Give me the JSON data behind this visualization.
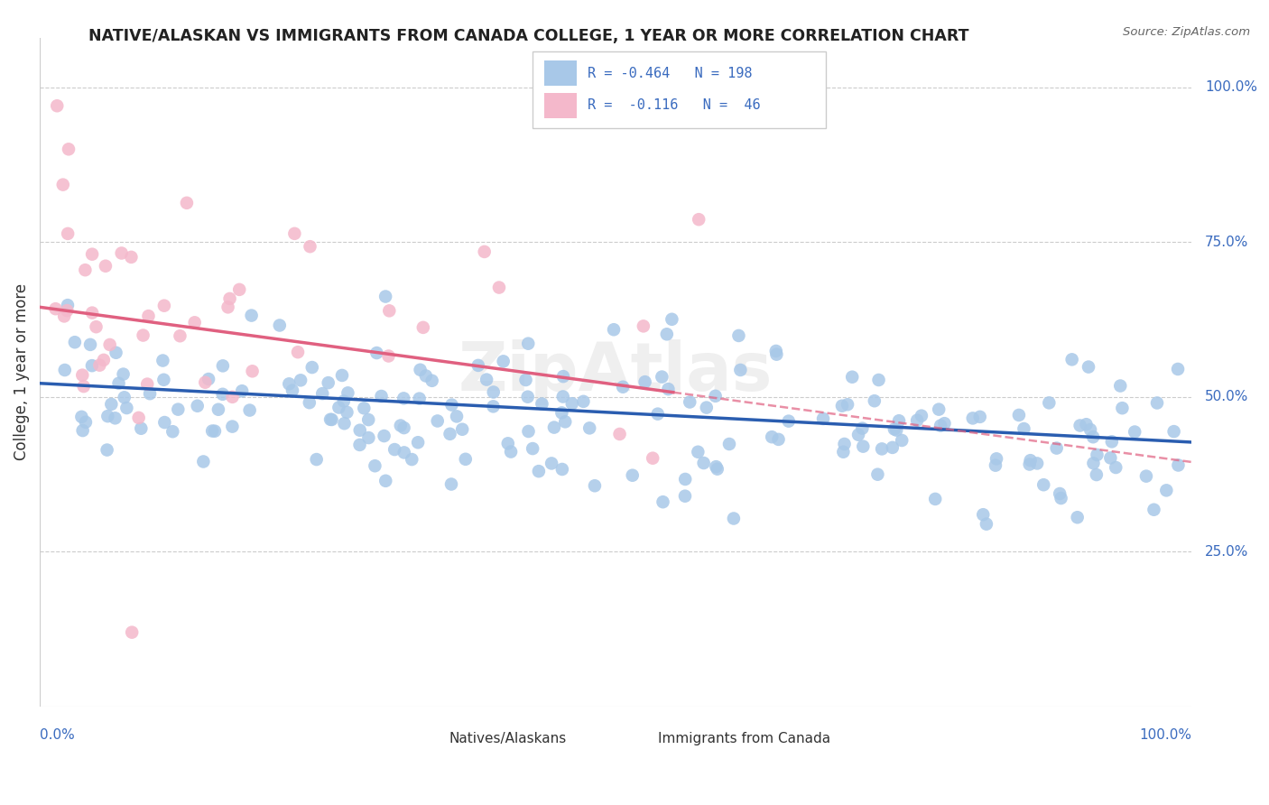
{
  "title": "NATIVE/ALASKAN VS IMMIGRANTS FROM CANADA COLLEGE, 1 YEAR OR MORE CORRELATION CHART",
  "source": "Source: ZipAtlas.com",
  "ylabel": "College, 1 year or more",
  "xlim": [
    0.0,
    1.0
  ],
  "ylim": [
    0.0,
    1.08
  ],
  "legend_r_blue": "-0.464",
  "legend_n_blue": "198",
  "legend_r_pink": "-0.116",
  "legend_n_pink": "46",
  "blue_color": "#a8c8e8",
  "pink_color": "#f4b8cb",
  "line_blue": "#2a5db0",
  "line_pink": "#e06080",
  "title_color": "#222222",
  "axis_label_color": "#3a6bbf",
  "watermark": "ZipAtlas",
  "source_color": "#666666"
}
